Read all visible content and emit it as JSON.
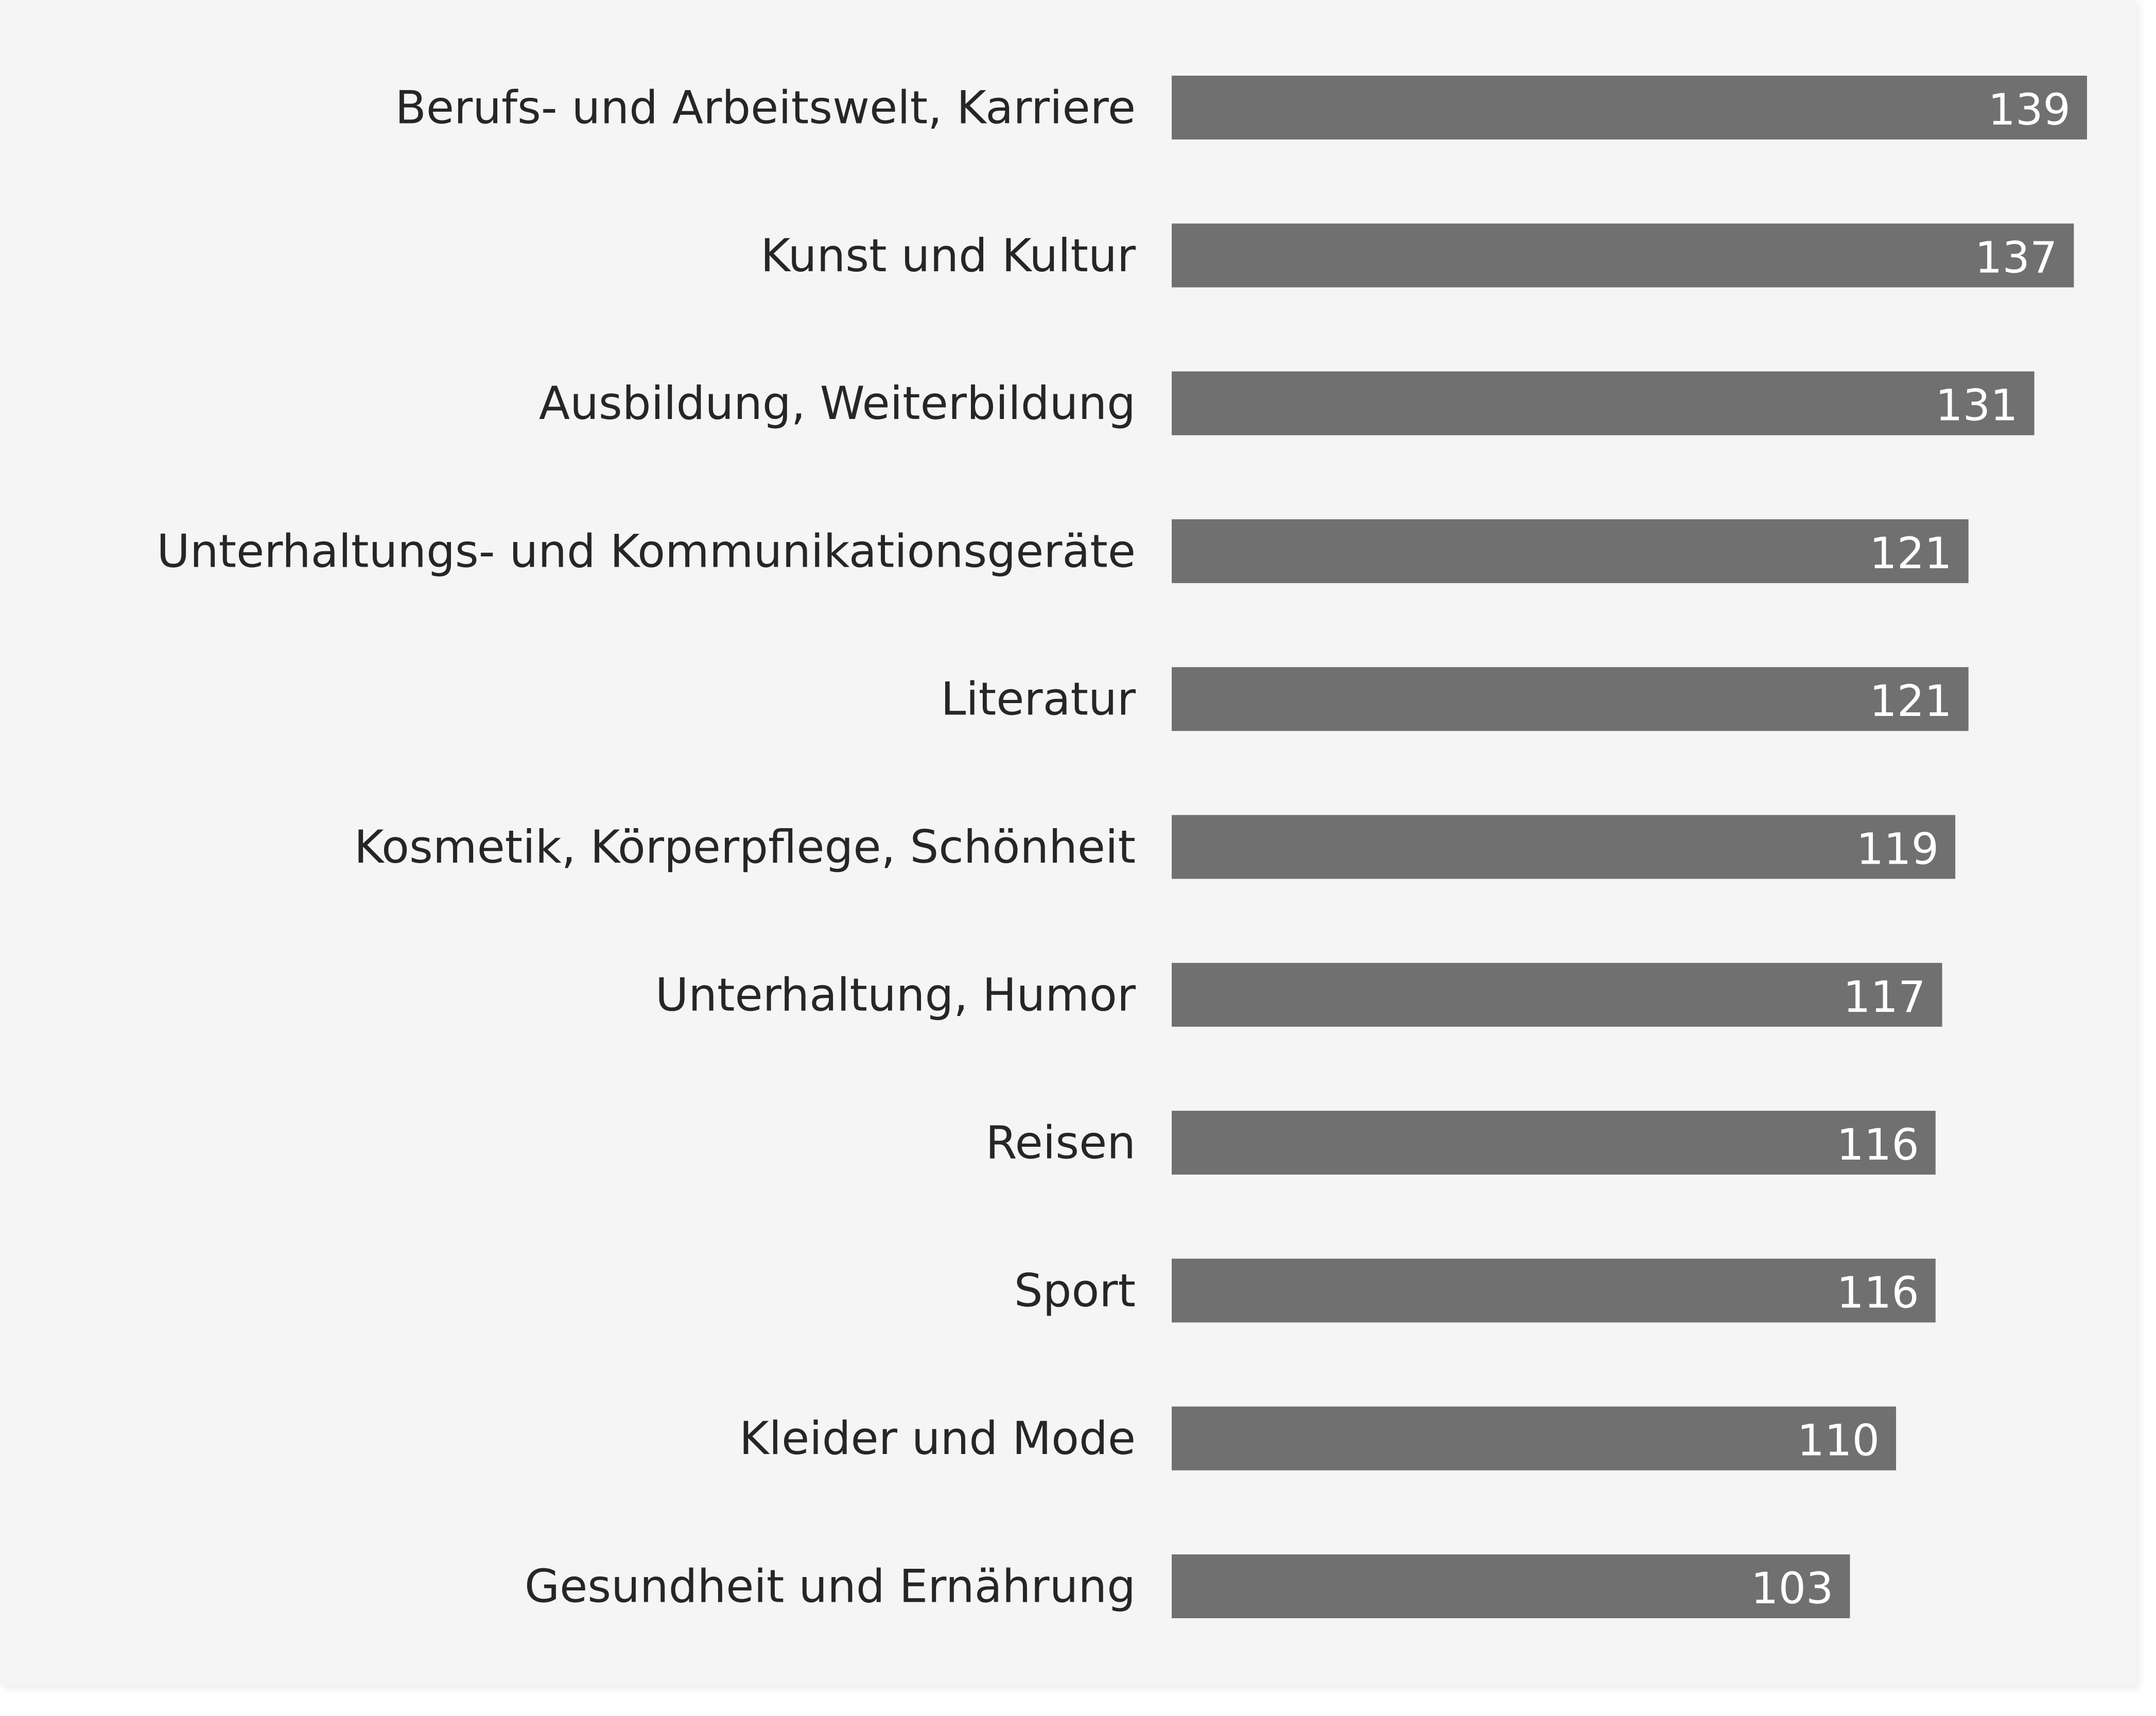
{
  "chart_data": {
    "type": "bar",
    "orientation": "horizontal",
    "categories": [
      "Berufs- und Arbeitswelt, Karriere",
      "Kunst und Kultur",
      "Ausbildung, Weiterbildung",
      "Unterhaltungs- und Kommunikationsgeräte",
      "Literatur",
      "Kosmetik, Körperpflege, Schönheit",
      "Unterhaltung, Humor",
      "Reisen",
      "Sport",
      "Kleider und Mode",
      "Gesundheit und Ernährung"
    ],
    "values": [
      139,
      137,
      131,
      121,
      121,
      119,
      117,
      116,
      116,
      110,
      103
    ],
    "data_labels": [
      "139",
      "137",
      "131",
      "121",
      "121",
      "119",
      "117",
      "116",
      "116",
      "110",
      "103"
    ],
    "title": "",
    "xlabel": "",
    "ylabel": "",
    "xlim": [
      0,
      139
    ],
    "grid": false,
    "legend": "none",
    "colors": {
      "bar": "#707070",
      "value_label": "#ffffff",
      "category_label": "#262626",
      "background": "#f5f5f5"
    }
  }
}
